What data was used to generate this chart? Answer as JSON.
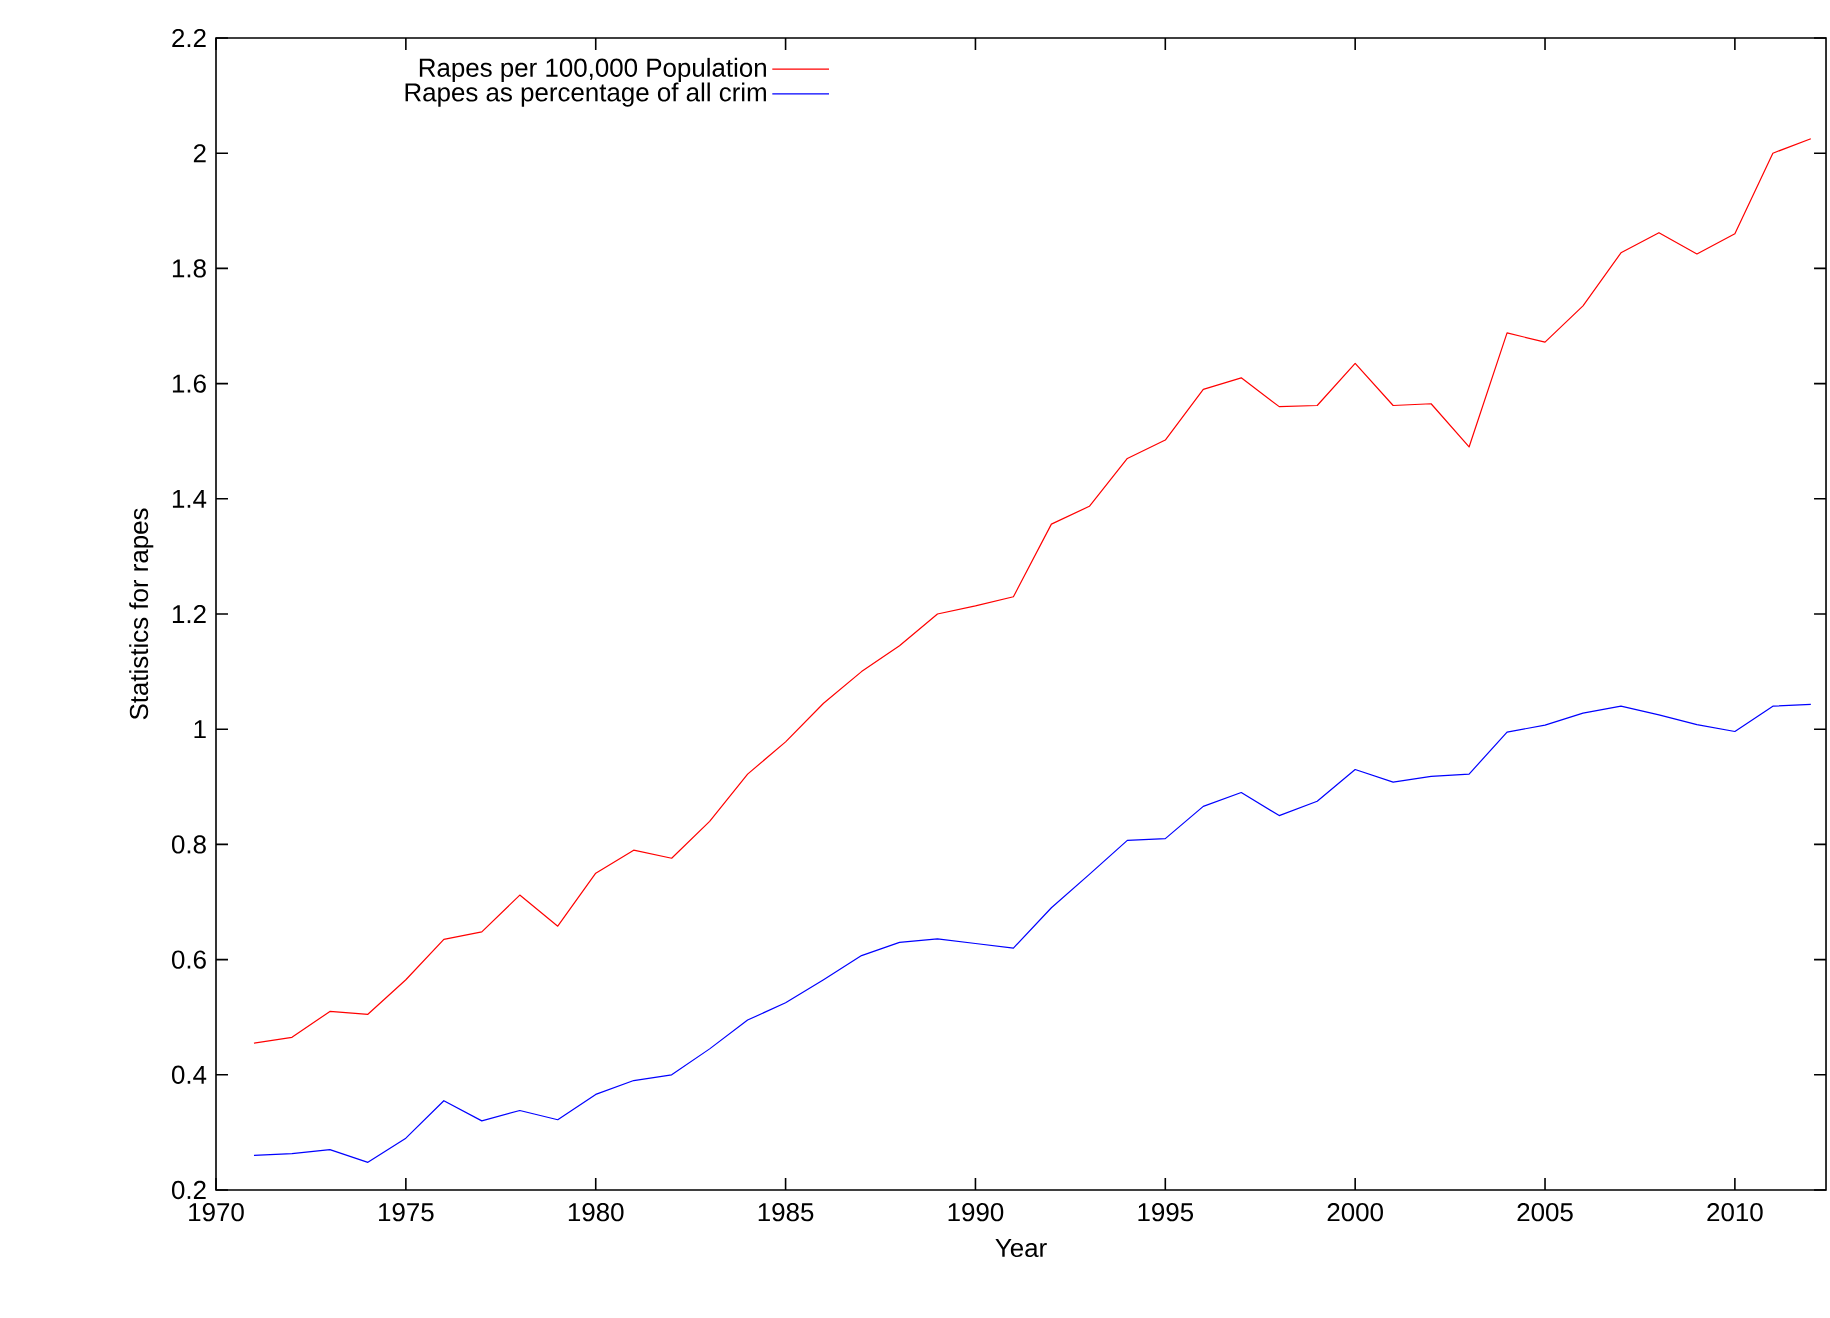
{
  "chart_data": {
    "type": "line",
    "xlabel": "Year",
    "ylabel": "Statistics for rapes",
    "x": [
      1971,
      1972,
      1973,
      1974,
      1975,
      1976,
      1977,
      1978,
      1979,
      1980,
      1981,
      1982,
      1983,
      1984,
      1985,
      1986,
      1987,
      1988,
      1989,
      1990,
      1991,
      1992,
      1993,
      1994,
      1995,
      1996,
      1997,
      1998,
      1999,
      2000,
      2001,
      2002,
      2003,
      2004,
      2005,
      2006,
      2007,
      2008,
      2009,
      2010,
      2011,
      2012
    ],
    "series": [
      {
        "name": "Rapes per 100,000 Population",
        "color": "#ff0000",
        "values": [
          0.455,
          0.465,
          0.51,
          0.505,
          0.565,
          0.635,
          0.648,
          0.712,
          0.658,
          0.75,
          0.79,
          0.776,
          0.84,
          0.922,
          0.978,
          1.045,
          1.1,
          1.145,
          1.2,
          1.214,
          1.23,
          1.356,
          1.387,
          1.47,
          1.502,
          1.59,
          1.61,
          1.56,
          1.562,
          1.635,
          1.562,
          1.565,
          1.49,
          1.688,
          1.672,
          1.735,
          1.827,
          1.862,
          1.825,
          1.86,
          2.0,
          2.025
        ]
      },
      {
        "name": "Rapes as percentage of all crim",
        "color": "#0000ff",
        "values": [
          0.26,
          0.263,
          0.27,
          0.248,
          0.29,
          0.355,
          0.32,
          0.338,
          0.322,
          0.366,
          0.39,
          0.4,
          0.445,
          0.495,
          0.525,
          0.565,
          0.607,
          0.63,
          0.636,
          0.628,
          0.62,
          0.69,
          0.748,
          0.807,
          0.81,
          0.866,
          0.89,
          0.85,
          0.875,
          0.93,
          0.908,
          0.918,
          0.922,
          0.995,
          1.007,
          1.028,
          1.04,
          1.025,
          1.008,
          0.996,
          1.04,
          1.043
        ]
      }
    ],
    "xlim": [
      1970,
      2012.4
    ],
    "ylim": [
      0.2,
      2.2
    ],
    "xticks": [
      1970,
      1975,
      1980,
      1985,
      1990,
      1995,
      2000,
      2005,
      2010
    ],
    "yticks": [
      0.2,
      0.4,
      0.6,
      0.8,
      1,
      1.2,
      1.4,
      1.6,
      1.8,
      2,
      2.2
    ],
    "legend": "top left",
    "grid": false,
    "marker": "none",
    "line_style": "solid"
  }
}
